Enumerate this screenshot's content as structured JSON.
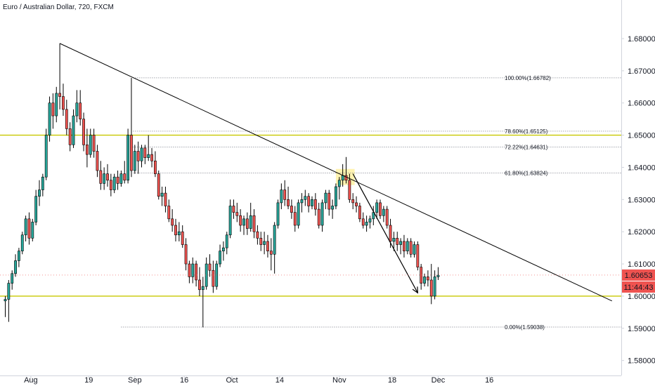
{
  "title": "Euro / Australian Dollar, 720, FXCM",
  "colors": {
    "up": "#26a69a",
    "down": "#ef5350",
    "candle_border": "#000000",
    "trendline": "#000000",
    "fib_line": "#787b86",
    "sr_line": "#c8c800",
    "price_badge": "#ef5350",
    "highlight": "#fff2a8"
  },
  "chart_data": {
    "type": "candlestick",
    "ylim": [
      1.576,
      1.6885
    ],
    "y_ticks": [
      "1.68000",
      "1.67000",
      "1.66000",
      "1.65000",
      "1.64000",
      "1.63000",
      "1.62000",
      "1.61000",
      "1.60000",
      "1.59000",
      "1.58000"
    ],
    "y_tick_values": [
      1.68,
      1.67,
      1.66,
      1.65,
      1.64,
      1.63,
      1.62,
      1.61,
      1.6,
      1.59,
      1.58
    ],
    "x_ticks": [
      "Aug",
      "19",
      "Sep",
      "16",
      "Oct",
      "14",
      "Nov",
      "18",
      "Dec",
      "16"
    ],
    "x_tick_bars": [
      7.5,
      24.5,
      38,
      52.5,
      66.5,
      80.5,
      98,
      113.5,
      127,
      142
    ],
    "last_price": "1.60653",
    "countdown": "11:44:43",
    "candles": [
      [
        1.5985,
        1.6,
        1.5935,
        1.599
      ],
      [
        1.599,
        1.605,
        1.592,
        1.604
      ],
      [
        1.604,
        1.608,
        1.602,
        1.607
      ],
      [
        1.607,
        1.613,
        1.606,
        1.611
      ],
      [
        1.611,
        1.615,
        1.609,
        1.614
      ],
      [
        1.614,
        1.62,
        1.613,
        1.619
      ],
      [
        1.619,
        1.625,
        1.617,
        1.624
      ],
      [
        1.624,
        1.626,
        1.616,
        1.618
      ],
      [
        1.618,
        1.624,
        1.617,
        1.623
      ],
      [
        1.623,
        1.633,
        1.622,
        1.631
      ],
      [
        1.631,
        1.636,
        1.628,
        1.633
      ],
      [
        1.633,
        1.638,
        1.631,
        1.637
      ],
      [
        1.637,
        1.652,
        1.636,
        1.65
      ],
      [
        1.65,
        1.662,
        1.648,
        1.66
      ],
      [
        1.66,
        1.663,
        1.652,
        1.656
      ],
      [
        1.656,
        1.665,
        1.654,
        1.663
      ],
      [
        1.663,
        1.6785,
        1.658,
        1.662
      ],
      [
        1.662,
        1.666,
        1.656,
        1.658
      ],
      [
        1.658,
        1.661,
        1.65,
        1.652
      ],
      [
        1.652,
        1.654,
        1.645,
        1.647
      ],
      [
        1.647,
        1.658,
        1.646,
        1.656
      ],
      [
        1.656,
        1.664,
        1.654,
        1.66
      ],
      [
        1.66,
        1.664,
        1.653,
        1.655
      ],
      [
        1.655,
        1.657,
        1.645,
        1.647
      ],
      [
        1.647,
        1.652,
        1.64,
        1.644
      ],
      [
        1.644,
        1.652,
        1.643,
        1.65
      ],
      [
        1.65,
        1.652,
        1.643,
        1.645
      ],
      [
        1.645,
        1.647,
        1.637,
        1.639
      ],
      [
        1.639,
        1.642,
        1.633,
        1.635
      ],
      [
        1.635,
        1.64,
        1.633,
        1.638
      ],
      [
        1.638,
        1.641,
        1.634,
        1.636
      ],
      [
        1.636,
        1.638,
        1.631,
        1.633
      ],
      [
        1.633,
        1.638,
        1.632,
        1.637
      ],
      [
        1.637,
        1.639,
        1.633,
        1.635
      ],
      [
        1.635,
        1.639,
        1.634,
        1.638
      ],
      [
        1.638,
        1.642,
        1.635,
        1.636
      ],
      [
        1.636,
        1.652,
        1.635,
        1.65
      ],
      [
        1.65,
        1.6678,
        1.637,
        1.639
      ],
      [
        1.639,
        1.647,
        1.638,
        1.645
      ],
      [
        1.645,
        1.648,
        1.638,
        1.642
      ],
      [
        1.642,
        1.647,
        1.64,
        1.646
      ],
      [
        1.646,
        1.647,
        1.641,
        1.643
      ],
      [
        1.643,
        1.65,
        1.642,
        1.644
      ],
      [
        1.644,
        1.646,
        1.64,
        1.642
      ],
      [
        1.642,
        1.645,
        1.637,
        1.638
      ],
      [
        1.638,
        1.639,
        1.63,
        1.631
      ],
      [
        1.631,
        1.634,
        1.628,
        1.632
      ],
      [
        1.632,
        1.634,
        1.626,
        1.628
      ],
      [
        1.628,
        1.63,
        1.623,
        1.624
      ],
      [
        1.624,
        1.627,
        1.62,
        1.622
      ],
      [
        1.622,
        1.624,
        1.617,
        1.619
      ],
      [
        1.619,
        1.623,
        1.617,
        1.62
      ],
      [
        1.62,
        1.622,
        1.615,
        1.616
      ],
      [
        1.616,
        1.618,
        1.608,
        1.61
      ],
      [
        1.61,
        1.611,
        1.604,
        1.606
      ],
      [
        1.606,
        1.612,
        1.604,
        1.61
      ],
      [
        1.61,
        1.611,
        1.603,
        1.605
      ],
      [
        1.605,
        1.609,
        1.6,
        1.602
      ],
      [
        1.602,
        1.606,
        1.5903,
        1.603
      ],
      [
        1.603,
        1.612,
        1.602,
        1.61
      ],
      [
        1.61,
        1.613,
        1.606,
        1.608
      ],
      [
        1.608,
        1.611,
        1.601,
        1.603
      ],
      [
        1.603,
        1.611,
        1.602,
        1.61
      ],
      [
        1.61,
        1.616,
        1.609,
        1.614
      ],
      [
        1.614,
        1.617,
        1.611,
        1.615
      ],
      [
        1.615,
        1.62,
        1.613,
        1.619
      ],
      [
        1.619,
        1.63,
        1.618,
        1.628
      ],
      [
        1.628,
        1.63,
        1.624,
        1.626
      ],
      [
        1.626,
        1.629,
        1.623,
        1.625
      ],
      [
        1.625,
        1.627,
        1.62,
        1.622
      ],
      [
        1.622,
        1.625,
        1.619,
        1.624
      ],
      [
        1.624,
        1.626,
        1.619,
        1.621
      ],
      [
        1.621,
        1.629,
        1.62,
        1.625
      ],
      [
        1.625,
        1.627,
        1.618,
        1.62
      ],
      [
        1.62,
        1.622,
        1.616,
        1.618
      ],
      [
        1.618,
        1.62,
        1.614,
        1.616
      ],
      [
        1.616,
        1.62,
        1.613,
        1.617
      ],
      [
        1.617,
        1.619,
        1.612,
        1.614
      ],
      [
        1.614,
        1.618,
        1.608,
        1.613
      ],
      [
        1.613,
        1.623,
        1.607,
        1.622
      ],
      [
        1.622,
        1.63,
        1.621,
        1.629
      ],
      [
        1.629,
        1.635,
        1.627,
        1.633
      ],
      [
        1.633,
        1.636,
        1.628,
        1.63
      ],
      [
        1.63,
        1.634,
        1.627,
        1.628
      ],
      [
        1.628,
        1.63,
        1.624,
        1.626
      ],
      [
        1.626,
        1.628,
        1.62,
        1.622
      ],
      [
        1.622,
        1.63,
        1.621,
        1.629
      ],
      [
        1.629,
        1.632,
        1.626,
        1.63
      ],
      [
        1.63,
        1.633,
        1.628,
        1.631
      ],
      [
        1.631,
        1.632,
        1.626,
        1.628
      ],
      [
        1.628,
        1.631,
        1.627,
        1.63
      ],
      [
        1.63,
        1.632,
        1.625,
        1.627
      ],
      [
        1.627,
        1.629,
        1.621,
        1.622
      ],
      [
        1.622,
        1.63,
        1.62,
        1.629
      ],
      [
        1.629,
        1.633,
        1.627,
        1.632
      ],
      [
        1.632,
        1.633,
        1.625,
        1.627
      ],
      [
        1.627,
        1.63,
        1.624,
        1.628
      ],
      [
        1.628,
        1.635,
        1.627,
        1.634
      ],
      [
        1.634,
        1.637,
        1.63,
        1.636
      ],
      [
        1.636,
        1.641,
        1.634,
        1.6375
      ],
      [
        1.6375,
        1.6432,
        1.635,
        1.636
      ],
      [
        1.636,
        1.638,
        1.629,
        1.63
      ],
      [
        1.63,
        1.632,
        1.627,
        1.629
      ],
      [
        1.629,
        1.631,
        1.626,
        1.628
      ],
      [
        1.628,
        1.629,
        1.623,
        1.624
      ],
      [
        1.624,
        1.626,
        1.621,
        1.622
      ],
      [
        1.622,
        1.625,
        1.62,
        1.623
      ],
      [
        1.623,
        1.625,
        1.621,
        1.624
      ],
      [
        1.624,
        1.628,
        1.622,
        1.626
      ],
      [
        1.626,
        1.63,
        1.624,
        1.629
      ],
      [
        1.629,
        1.63,
        1.624,
        1.625
      ],
      [
        1.625,
        1.628,
        1.623,
        1.627
      ],
      [
        1.627,
        1.628,
        1.621,
        1.622
      ],
      [
        1.622,
        1.624,
        1.615,
        1.617
      ],
      [
        1.617,
        1.62,
        1.614,
        1.618
      ],
      [
        1.618,
        1.62,
        1.614,
        1.616
      ],
      [
        1.616,
        1.618,
        1.613,
        1.617
      ],
      [
        1.617,
        1.619,
        1.612,
        1.614
      ],
      [
        1.614,
        1.618,
        1.613,
        1.617
      ],
      [
        1.617,
        1.618,
        1.612,
        1.613
      ],
      [
        1.613,
        1.617,
        1.612,
        1.616
      ],
      [
        1.616,
        1.617,
        1.608,
        1.609
      ],
      [
        1.609,
        1.61,
        1.602,
        1.604
      ],
      [
        1.604,
        1.607,
        1.603,
        1.606
      ],
      [
        1.606,
        1.608,
        1.603,
        1.605
      ],
      [
        1.605,
        1.61,
        1.5975,
        1.6
      ],
      [
        1.6,
        1.608,
        1.599,
        1.606
      ],
      [
        1.606,
        1.609,
        1.605,
        1.6065
      ]
    ],
    "fib_levels": [
      {
        "label": "100.00%(1.66782)",
        "price": 1.66782
      },
      {
        "label": "78.60%(1.65125)",
        "price": 1.65125
      },
      {
        "label": "72.22%(1.64631)",
        "price": 1.64631
      },
      {
        "label": "61.80%(1.63824)",
        "price": 1.63824
      },
      {
        "label": "0.00%(1.59038)",
        "price": 1.59038
      }
    ],
    "horizontal_lines": [
      1.65,
      1.6
    ],
    "trendline": {
      "from": {
        "bar": 16,
        "price": 1.6785
      },
      "to": {
        "bar": 178,
        "price": 1.5985
      }
    },
    "arrow": {
      "from": {
        "bar": 102,
        "price": 1.638
      },
      "to": {
        "bar": 121,
        "price": 1.601
      }
    },
    "highlight": {
      "bar_start": 97,
      "bar_end": 102.5,
      "price_top": 1.6395,
      "price_bottom": 1.6345
    }
  }
}
